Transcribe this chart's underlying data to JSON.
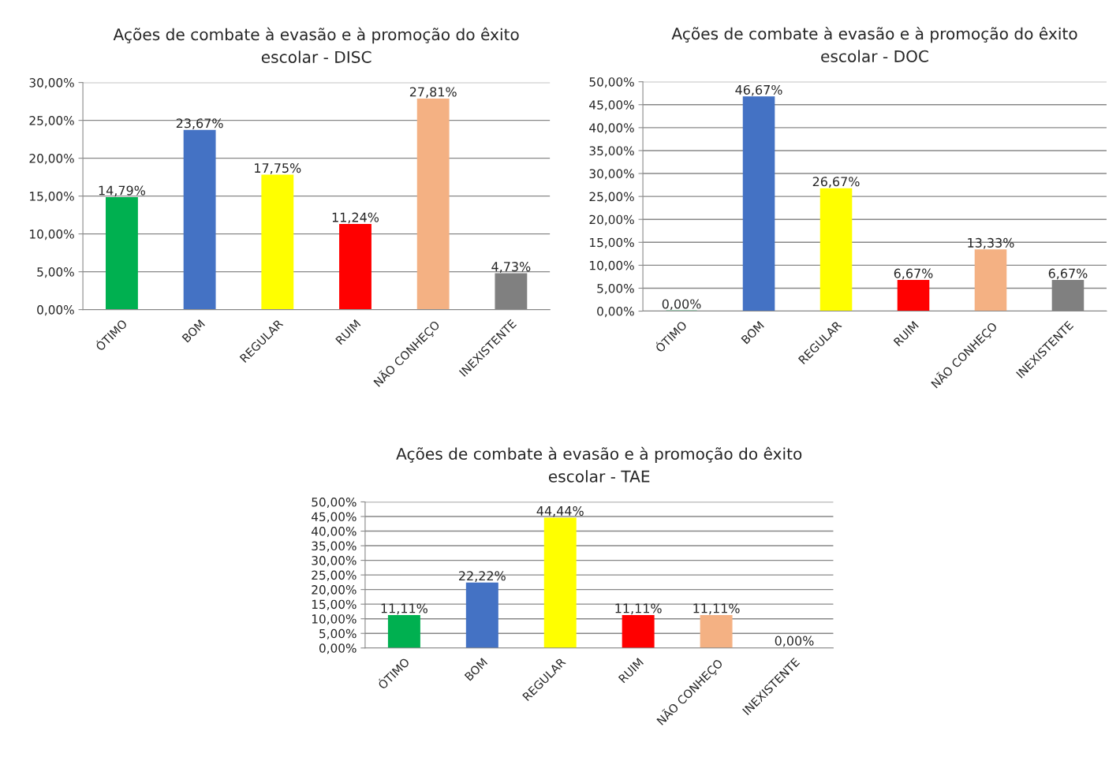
{
  "chart_data": [
    {
      "type": "bar",
      "title": "Ações de combate à evasão e à promoção do êxito escolar - DISC",
      "categories": [
        "ÓTIMO",
        "BOM",
        "REGULAR",
        "RUIM",
        "NÃO CONHEÇO",
        "INEXISTENTE"
      ],
      "values": [
        14.79,
        23.67,
        17.75,
        11.24,
        27.81,
        4.73
      ],
      "colors": [
        "#00b050",
        "#4472c4",
        "#ffff00",
        "#ff0000",
        "#f4b183",
        "#808080"
      ],
      "value_labels": [
        "14,79%",
        "23,67%",
        "17,75%",
        "11,24%",
        "27,81%",
        "4,73%"
      ],
      "ylim": [
        0,
        30
      ],
      "yticks": [
        {
          "value": 0,
          "label": "0,00%"
        },
        {
          "value": 5,
          "label": "5,00%"
        },
        {
          "value": 10,
          "label": "10,00%"
        },
        {
          "value": 15,
          "label": "15,00%"
        },
        {
          "value": 20,
          "label": "20,00%"
        },
        {
          "value": 25,
          "label": "25,00%"
        },
        {
          "value": 30,
          "label": "30,00%"
        }
      ],
      "grid": "y",
      "legend": false
    },
    {
      "type": "bar",
      "title": "Ações de combate à evasão e à promoção do êxito escolar - DOC",
      "categories": [
        "ÓTIMO",
        "BOM",
        "REGULAR",
        "RUIM",
        "NÃO CONHEÇO",
        "INEXISTENTE"
      ],
      "values": [
        0,
        46.67,
        26.67,
        6.67,
        13.33,
        6.67
      ],
      "colors": [
        "#00b050",
        "#4472c4",
        "#ffff00",
        "#ff0000",
        "#f4b183",
        "#808080"
      ],
      "value_labels": [
        "0,00%",
        "46,67%",
        "26,67%",
        "6,67%",
        "13,33%",
        "6,67%"
      ],
      "ylim": [
        0,
        50
      ],
      "yticks": [
        {
          "value": 0,
          "label": "0,00%"
        },
        {
          "value": 5,
          "label": "5,00%"
        },
        {
          "value": 10,
          "label": "10,00%"
        },
        {
          "value": 15,
          "label": "15,00%"
        },
        {
          "value": 20,
          "label": "20,00%"
        },
        {
          "value": 25,
          "label": "25,00%"
        },
        {
          "value": 30,
          "label": "30,00%"
        },
        {
          "value": 35,
          "label": "35,00%"
        },
        {
          "value": 40,
          "label": "40,00%"
        },
        {
          "value": 45,
          "label": "45,00%"
        },
        {
          "value": 50,
          "label": "50,00%"
        }
      ],
      "grid": "y",
      "legend": false
    },
    {
      "type": "bar",
      "title": "Ações de combate à evasão e à promoção do êxito escolar - TAE",
      "categories": [
        "ÓTIMO",
        "BOM",
        "REGULAR",
        "RUIM",
        "NÃO CONHEÇO",
        "INEXISTENTE"
      ],
      "values": [
        11.11,
        22.22,
        44.44,
        11.11,
        11.11,
        0
      ],
      "colors": [
        "#00b050",
        "#4472c4",
        "#ffff00",
        "#ff0000",
        "#f4b183",
        "#808080"
      ],
      "value_labels": [
        "11,11%",
        "22,22%",
        "44,44%",
        "11,11%",
        "11,11%",
        "0,00%"
      ],
      "ylim": [
        0,
        50
      ],
      "yticks": [
        {
          "value": 0,
          "label": "0,00%"
        },
        {
          "value": 5,
          "label": "5,00%"
        },
        {
          "value": 10,
          "label": "10,00%"
        },
        {
          "value": 15,
          "label": "15,00%"
        },
        {
          "value": 20,
          "label": "20,00%"
        },
        {
          "value": 25,
          "label": "25,00%"
        },
        {
          "value": 30,
          "label": "30,00%"
        },
        {
          "value": 35,
          "label": "35,00%"
        },
        {
          "value": 40,
          "label": "40,00%"
        },
        {
          "value": 45,
          "label": "45,00%"
        },
        {
          "value": 50,
          "label": "50,00%"
        }
      ],
      "grid": "y",
      "legend": false
    }
  ]
}
